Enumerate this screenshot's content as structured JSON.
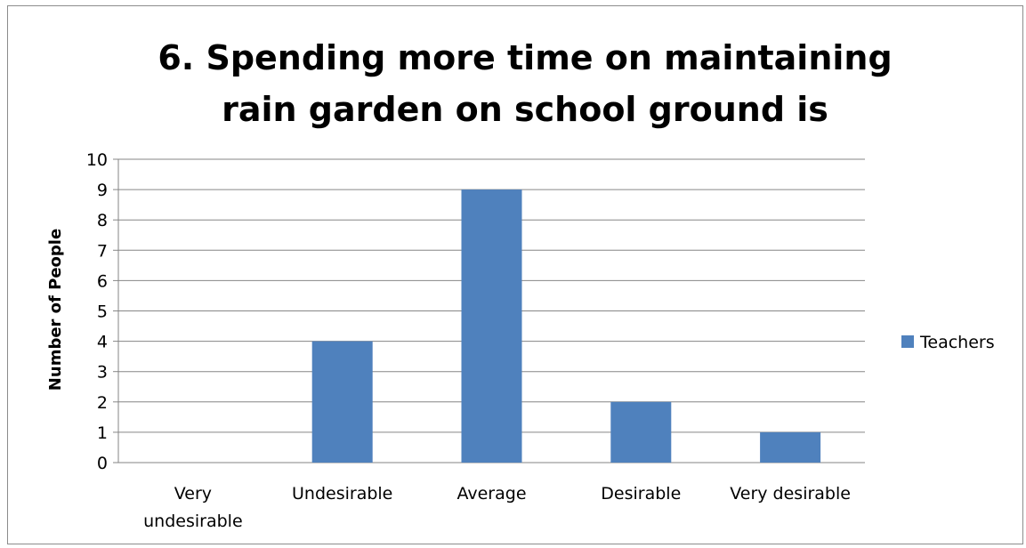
{
  "chart_data": {
    "type": "bar",
    "title": "6. Spending more time on maintaining rain garden on school ground is",
    "xlabel": "",
    "ylabel": "Number of People",
    "categories": [
      "Very undesirable",
      "Undesirable",
      "Average",
      "Desirable",
      "Very desirable"
    ],
    "category_lines": [
      [
        "Very",
        "undesirable"
      ],
      [
        "Undesirable"
      ],
      [
        "Average"
      ],
      [
        "Desirable"
      ],
      [
        "Very desirable"
      ]
    ],
    "series": [
      {
        "name": "Teachers",
        "values": [
          0,
          4,
          9,
          2,
          1
        ],
        "color": "#4f81bd"
      }
    ],
    "ylim": [
      0,
      10
    ],
    "yticks": [
      0,
      1,
      2,
      3,
      4,
      5,
      6,
      7,
      8,
      9,
      10
    ],
    "grid": true,
    "legend": "right",
    "colors": {
      "bar": "#4f81bd",
      "grid": "#868686",
      "frame": "#8c8c8c"
    }
  }
}
